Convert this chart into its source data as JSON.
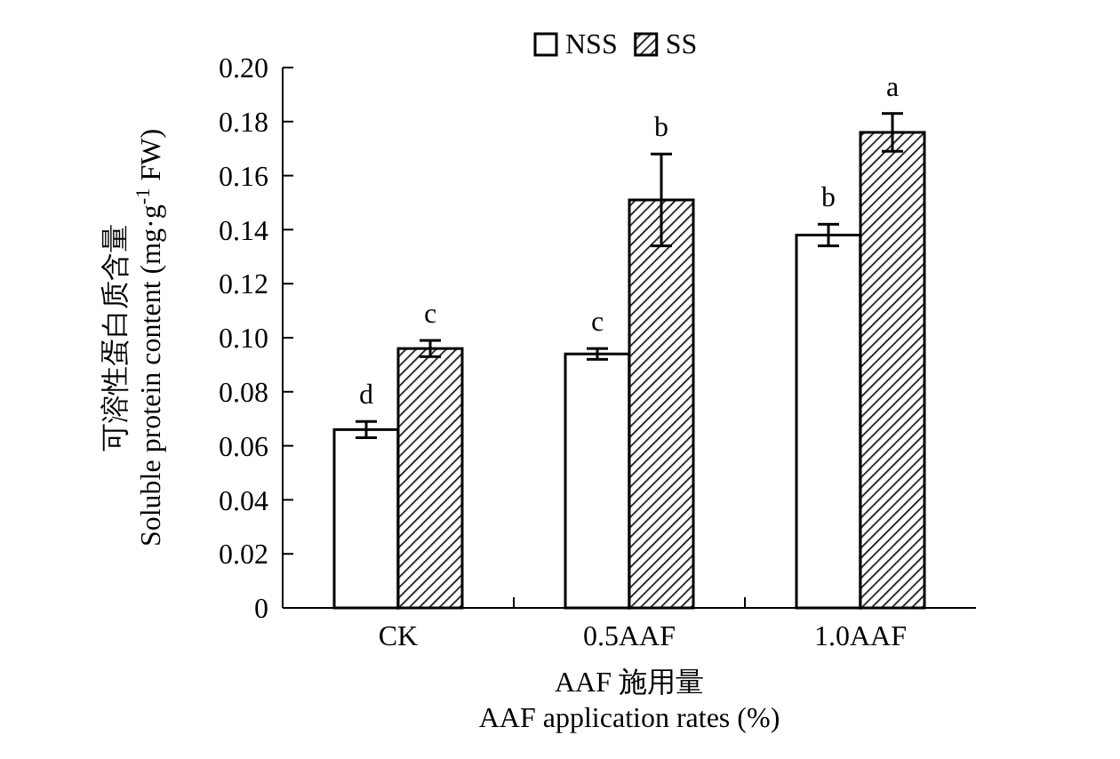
{
  "chart_data": {
    "type": "bar",
    "categories": [
      "CK",
      "0.5AAF",
      "1.0AAF"
    ],
    "series": [
      {
        "name": "NSS",
        "color": "#ffffff",
        "values": [
          0.066,
          0.094,
          0.138
        ],
        "errors": [
          0.003,
          0.002,
          0.004
        ]
      },
      {
        "name": "SS",
        "color": "#000000",
        "values": [
          0.096,
          0.151,
          0.176
        ],
        "errors": [
          0.003,
          0.017,
          0.007
        ]
      }
    ],
    "annotations": [
      "d",
      "c",
      "c",
      "b",
      "b",
      "a"
    ],
    "ylabel": "可溶性蛋白质含量\nSoluble protein content (mg·g$^{-1}$ FW)",
    "xlabel": "AAF 施用量\nAAF application rates (%)",
    "ylim": [
      0,
      0.2
    ],
    "yticks": [
      0,
      {
        "value": 0.02,
        "label": "0.02"
      },
      {
        "value": 0.04,
        "label": "0.04"
      },
      {
        "value": 0.06,
        "label": "0.06"
      },
      {
        "value": 0.08,
        "label": "0.08"
      },
      {
        "value": 0.1,
        "label": "0.10"
      },
      {
        "value": 0.12,
        "label": "0.12"
      },
      {
        "value": 0.14,
        "label": "0.14"
      },
      {
        "value": 0.16,
        "label": "0.16"
      },
      {
        "value": 0.18,
        "label": "0.18"
      },
      {
        "value": 0.2,
        "label": "0.20"
      }
    ],
    "legend": "top",
    "grid": false
  }
}
